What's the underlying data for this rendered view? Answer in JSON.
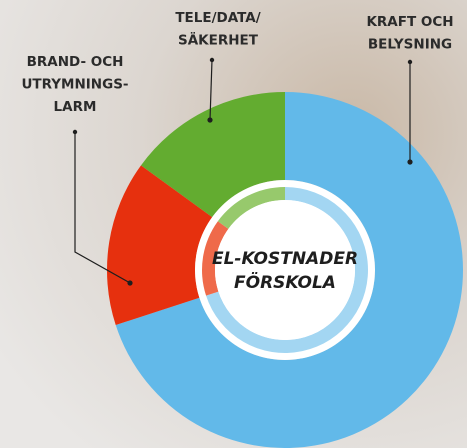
{
  "chart_data": {
    "type": "donut",
    "center_label": [
      "EL-KOSTNADER",
      "FÖRSKOLA"
    ],
    "categories": [
      [
        "KRAFT OCH",
        "BELYSNING"
      ],
      [
        "BRAND- OCH",
        "UTRYMNINGS-",
        "LARM"
      ],
      [
        "TELE/DATA/",
        "SÄKERHET"
      ]
    ],
    "values": [
      70,
      15,
      15
    ],
    "colors": [
      "#62b9e9",
      "#e6300e",
      "#63ac30"
    ],
    "inner_colors": [
      "#a3d6f2",
      "#ef6a4a",
      "#97c96c"
    ]
  }
}
